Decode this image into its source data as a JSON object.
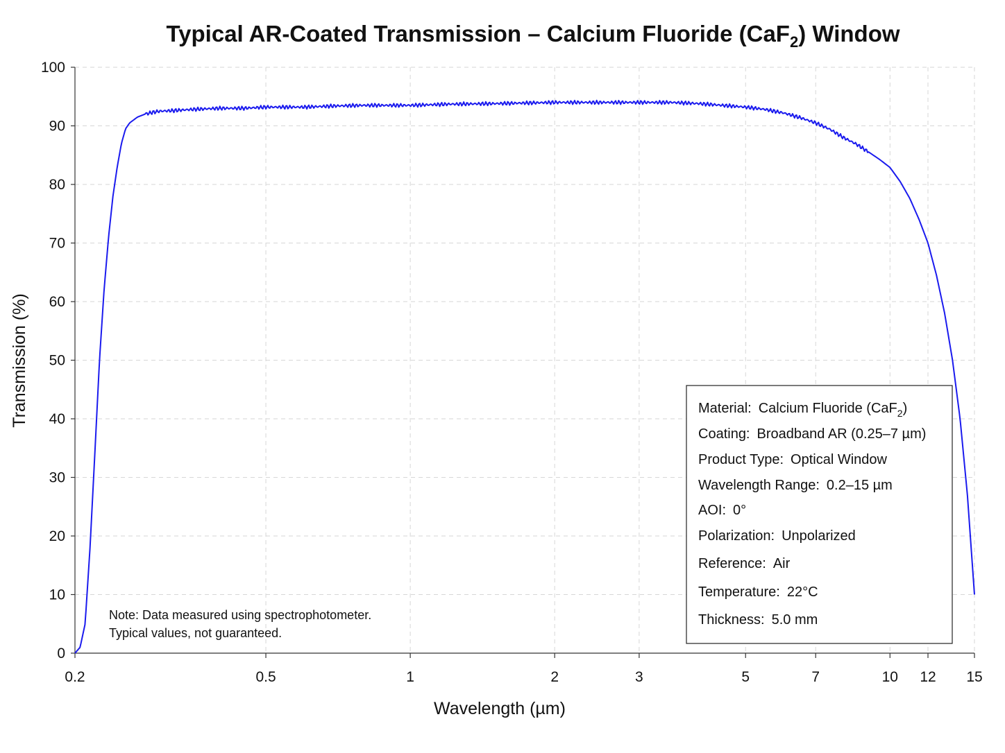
{
  "chart_data": {
    "type": "line",
    "title_main": "Typical AR-Coated Transmission – Calcium Fluoride (CaF",
    "title_sub": "2",
    "title_end": ") Window",
    "xlabel": "Wavelength (µm)",
    "ylabel": "Transmission (%)",
    "x_scale": "log",
    "xlim": [
      0.2,
      15
    ],
    "ylim": [
      0,
      100
    ],
    "x_ticks": [
      0.2,
      0.5,
      1,
      2,
      3,
      5,
      7,
      10,
      12,
      15
    ],
    "x_tick_labels": [
      "0.2",
      "0.5",
      "1",
      "2",
      "3",
      "5",
      "7",
      "10",
      "12",
      "15"
    ],
    "y_ticks": [
      0,
      10,
      20,
      30,
      40,
      50,
      60,
      70,
      80,
      90,
      100
    ],
    "y_tick_labels": [
      "0",
      "10",
      "20",
      "30",
      "40",
      "50",
      "60",
      "70",
      "80",
      "90",
      "100"
    ],
    "grid": true,
    "line_color": "#1a1aee",
    "series": [
      {
        "x": [
          0.2,
          0.205,
          0.21,
          0.215,
          0.22,
          0.225,
          0.23,
          0.235,
          0.24,
          0.245,
          0.25,
          0.255,
          0.26,
          0.265,
          0.27,
          0.28,
          0.29,
          0.3,
          0.32,
          0.35,
          0.4,
          0.45,
          0.5,
          0.55,
          0.6,
          0.7,
          0.8,
          0.9,
          1,
          1.2,
          1.5,
          2,
          2.5,
          3,
          3.5,
          4,
          5,
          5.5,
          6,
          6.5,
          7,
          7.5,
          8,
          8.5,
          9,
          9.5,
          10,
          10.5,
          11,
          11.5,
          12,
          12.5,
          13,
          13.5,
          14,
          14.5,
          15
        ],
        "y": [
          0,
          1,
          5,
          18,
          34,
          50,
          62,
          71,
          78,
          83,
          87,
          89.5,
          90.5,
          91,
          91.5,
          92,
          92.3,
          92.5,
          92.6,
          92.8,
          93,
          93,
          93.2,
          93.2,
          93.2,
          93.4,
          93.5,
          93.5,
          93.5,
          93.7,
          93.8,
          94,
          94,
          94,
          94,
          93.8,
          93.2,
          92.8,
          92.2,
          91.4,
          90.5,
          89.4,
          88,
          86.9,
          85.6,
          84.3,
          82.9,
          80.5,
          77.6,
          74,
          70,
          64.5,
          58,
          50,
          40,
          27,
          10
        ]
      }
    ]
  },
  "info_box": {
    "items": [
      {
        "label": "Material:",
        "value": "Calcium Fluoride (CaF",
        "value_sub": "2",
        "value_end": ")"
      },
      {
        "label": "Coating:",
        "value": "Broadband AR (0.25–7 µm)"
      },
      {
        "label": "Product Type:",
        "value": "Optical Window"
      },
      {
        "label": "Wavelength Range:",
        "value": "0.2–15 µm"
      },
      {
        "label": "AOI:",
        "value": "0°"
      },
      {
        "label": "Polarization:",
        "value": "Unpolarized"
      },
      {
        "label": "Reference:",
        "value": "Air"
      },
      {
        "label": "Temperature:",
        "value": "22°C"
      },
      {
        "label": "Thickness:",
        "value": "5.0 mm"
      }
    ]
  },
  "note": {
    "line1": "Note: Data measured using spectrophotometer.",
    "line2": "Typical values, not guaranteed."
  }
}
